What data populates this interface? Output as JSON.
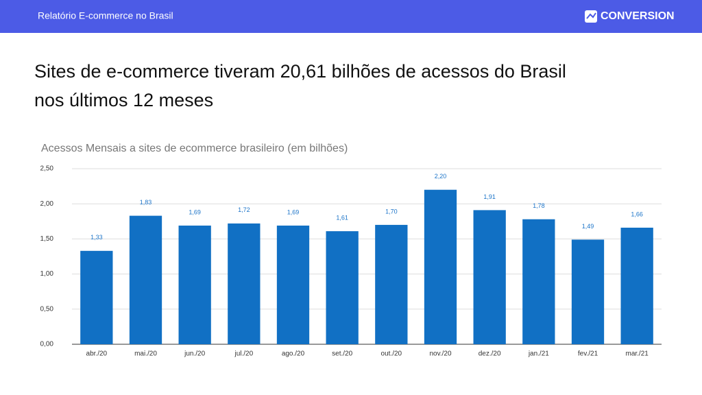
{
  "header": {
    "title": "Relatório E-commerce no Brasil",
    "brand": "CONVERSION"
  },
  "headline": [
    "Sites de e-commerce tiveram 20,61 bilhões de acessos do Brasil",
    "nos últimos 12 meses"
  ],
  "chart_data": {
    "type": "bar",
    "title": "Acessos Mensais a sites de ecommerce brasileiro (em bilhões)",
    "categories": [
      "abr./20",
      "mai./20",
      "jun./20",
      "jul./20",
      "ago./20",
      "set./20",
      "out./20",
      "nov./20",
      "dez./20",
      "jan./21",
      "fev./21",
      "mar./21"
    ],
    "values": [
      1.33,
      1.83,
      1.69,
      1.72,
      1.69,
      1.61,
      1.7,
      2.2,
      1.91,
      1.78,
      1.49,
      1.66
    ],
    "value_labels": [
      "1,33",
      "1,83",
      "1,69",
      "1,72",
      "1,69",
      "1,61",
      "1,70",
      "2,20",
      "1,91",
      "1,78",
      "1,49",
      "1,66"
    ],
    "color": "#1170c4",
    "ylim": [
      0,
      2.5
    ],
    "yticks": [
      {
        "value": 0,
        "label": "0,00"
      },
      {
        "value": 0.5,
        "label": "0,50"
      },
      {
        "value": 1,
        "label": "1,00"
      },
      {
        "value": 1.5,
        "label": "1,50"
      },
      {
        "value": 2,
        "label": "2,00"
      },
      {
        "value": 2.5,
        "label": "2,50"
      }
    ],
    "grid": true
  }
}
